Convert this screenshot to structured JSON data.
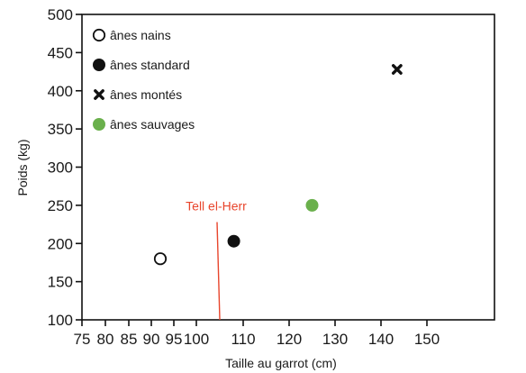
{
  "chart_data": {
    "type": "scatter",
    "xlabel": "Taille au garrot (cm)",
    "ylabel": "Poids (kg)",
    "xlim": [
      75,
      150
    ],
    "ylim": [
      100,
      500
    ],
    "x_ticks": [
      75,
      80,
      85,
      90,
      95,
      100,
      110,
      120,
      130,
      140,
      150
    ],
    "y_ticks": [
      100,
      150,
      200,
      250,
      300,
      350,
      400,
      450,
      500
    ],
    "legend_position": "top-left",
    "series": [
      {
        "name": "ânes nains",
        "marker": "open-circle",
        "color": "#111111",
        "points": [
          {
            "x": 92,
            "y": 180
          }
        ]
      },
      {
        "name": "ânes standard",
        "marker": "filled-circle",
        "color": "#111111",
        "points": [
          {
            "x": 108,
            "y": 203
          }
        ]
      },
      {
        "name": "ânes montés",
        "marker": "cross",
        "color": "#111111",
        "points": [
          {
            "x": 143.5,
            "y": 428
          }
        ]
      },
      {
        "name": "ânes sauvages",
        "marker": "filled-circle",
        "color": "#6ab04c",
        "points": [
          {
            "x": 125,
            "y": 250
          }
        ]
      }
    ],
    "annotations": [
      {
        "text": "Tell el-Herr",
        "x": 105,
        "y_from": 100,
        "y_to": 228,
        "color": "#e8452c"
      }
    ]
  }
}
